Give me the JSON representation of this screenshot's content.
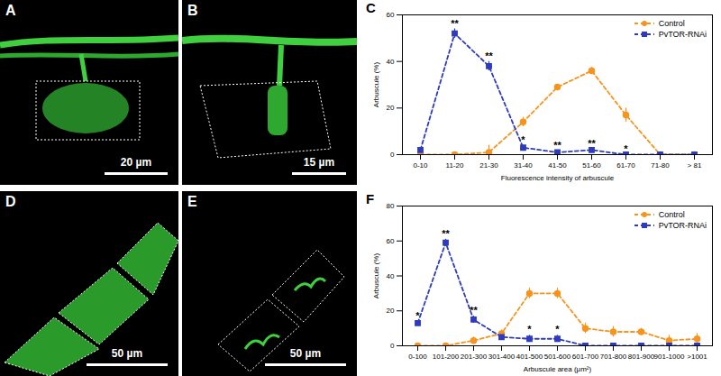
{
  "panels": [
    {
      "label": "A",
      "scale_bar": "20 µm"
    },
    {
      "label": "B",
      "scale_bar": "15 µm"
    },
    {
      "label": "D",
      "scale_bar": "50 µm"
    },
    {
      "label": "E",
      "scale_bar": "50 µm"
    }
  ],
  "chart_data": [
    {
      "type": "line",
      "title": "C",
      "x_label": "Fluorescence intensity of arbuscule",
      "y_label": "Arbuscule (%)",
      "categories": [
        "0-10",
        "11-20",
        "21-30",
        "31-40",
        "41-50",
        "51-60",
        "61-70",
        "71-80",
        "> 81"
      ],
      "ylim": [
        0,
        60
      ],
      "yticks": [
        0,
        20,
        40,
        60
      ],
      "grid": false,
      "legend": "top-right",
      "series": [
        {
          "name": "Control",
          "color": "#f7941d",
          "marker": "circle",
          "line_style": "dashed",
          "values": [
            0,
            0,
            1,
            14,
            29,
            36,
            17,
            0,
            0
          ],
          "errors": [
            0,
            0,
            3,
            2,
            1,
            1.5,
            3,
            0,
            0
          ]
        },
        {
          "name": "PvTOR-RNAi",
          "color": "#2e3bbf",
          "marker": "square",
          "line_style": "dashed",
          "values": [
            2,
            52,
            38,
            3,
            1,
            2,
            0,
            0,
            0
          ],
          "errors": [
            1,
            2,
            2,
            1,
            0.5,
            0.5,
            0,
            0,
            0
          ],
          "significance": [
            null,
            "**",
            "**",
            "*",
            "**",
            "**",
            "*",
            null,
            null
          ]
        }
      ]
    },
    {
      "type": "line",
      "title": "F",
      "x_label": "Arbuscule area (μm²)",
      "y_label": "Arbuscule (%)",
      "categories": [
        "0-100",
        "101-200",
        "201-300",
        "301-400",
        "401-500",
        "501-600",
        "601-700",
        "701-800",
        "801-900",
        "901-1000",
        ">1001"
      ],
      "ylim": [
        0,
        80
      ],
      "yticks": [
        0,
        20,
        40,
        60,
        80
      ],
      "grid": false,
      "legend": "top-right",
      "series": [
        {
          "name": "Control",
          "color": "#f7941d",
          "marker": "circle",
          "line_style": "dashed",
          "values": [
            0,
            0,
            3,
            7,
            30,
            30,
            10,
            8,
            8,
            3,
            4
          ],
          "errors": [
            0,
            0,
            2,
            2,
            3,
            3,
            3,
            3,
            2,
            3,
            3
          ]
        },
        {
          "name": "PvTOR-RNAi",
          "color": "#2e3bbf",
          "marker": "square",
          "line_style": "dashed",
          "values": [
            13,
            59,
            15,
            5,
            4,
            4,
            0,
            0,
            0,
            0,
            0
          ],
          "errors": [
            1,
            2,
            2,
            1,
            2,
            2,
            0,
            0,
            0,
            0,
            0
          ],
          "significance": [
            "*",
            "**",
            "**",
            null,
            "*",
            "*",
            null,
            null,
            null,
            null,
            null
          ]
        }
      ]
    }
  ]
}
